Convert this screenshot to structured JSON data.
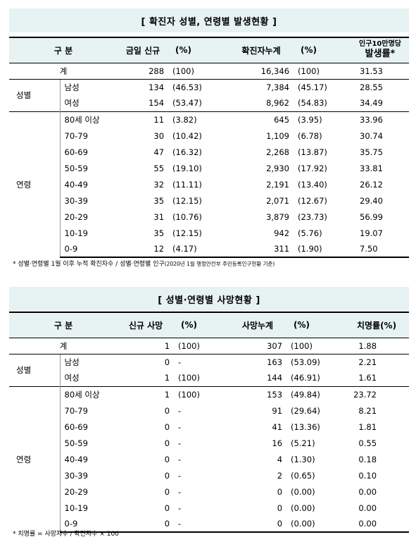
{
  "table1": {
    "title": "[ 확진자 성별, 연령별 발생현황 ]",
    "headers": {
      "category": "구 분",
      "new": "금일 신규",
      "new_pct": "(%)",
      "cum": "확진자누계",
      "cum_pct": "(%)",
      "rate_top": "인구10만명당",
      "rate_bottom": "발생률*"
    },
    "total": {
      "label": "계",
      "new": "288",
      "new_pct": "(100)",
      "cum": "16,346",
      "cum_pct": "(100)",
      "rate": "31.53"
    },
    "sex_group": "성별",
    "sex": [
      {
        "label": "남성",
        "new": "134",
        "new_pct": "(46.53)",
        "cum": "7,384",
        "cum_pct": "(45.17)",
        "rate": "28.55"
      },
      {
        "label": "여성",
        "new": "154",
        "new_pct": "(53.47)",
        "cum": "8,962",
        "cum_pct": "(54.83)",
        "rate": "34.49"
      }
    ],
    "age_group": "연령",
    "age": [
      {
        "label": "80세 이상",
        "new": "11",
        "new_pct": "(3.82)",
        "cum": "645",
        "cum_pct": "(3.95)",
        "rate": "33.96"
      },
      {
        "label": "70-79",
        "new": "30",
        "new_pct": "(10.42)",
        "cum": "1,109",
        "cum_pct": "(6.78)",
        "rate": "30.74"
      },
      {
        "label": "60-69",
        "new": "47",
        "new_pct": "(16.32)",
        "cum": "2,268",
        "cum_pct": "(13.87)",
        "rate": "35.75"
      },
      {
        "label": "50-59",
        "new": "55",
        "new_pct": "(19.10)",
        "cum": "2,930",
        "cum_pct": "(17.92)",
        "rate": "33.81"
      },
      {
        "label": "40-49",
        "new": "32",
        "new_pct": "(11.11)",
        "cum": "2,191",
        "cum_pct": "(13.40)",
        "rate": "26.12"
      },
      {
        "label": "30-39",
        "new": "35",
        "new_pct": "(12.15)",
        "cum": "2,071",
        "cum_pct": "(12.67)",
        "rate": "29.40"
      },
      {
        "label": "20-29",
        "new": "31",
        "new_pct": "(10.76)",
        "cum": "3,879",
        "cum_pct": "(23.73)",
        "rate": "56.99"
      },
      {
        "label": "10-19",
        "new": "35",
        "new_pct": "(12.15)",
        "cum": "942",
        "cum_pct": "(5.76)",
        "rate": "19.07"
      },
      {
        "label": "0-9",
        "new": "12",
        "new_pct": "(4.17)",
        "cum": "311",
        "cum_pct": "(1.90)",
        "rate": "7.50"
      }
    ],
    "note_main": "* 성별·연령별 1월 이후 누적 확진자수 / 성별·연령별 인구",
    "note_small": "(2020년 1월 행정안전부 주민등록인구현황 기준)"
  },
  "table2": {
    "title": "[ 성별·연령별 사망현황 ]",
    "headers": {
      "category": "구 분",
      "new": "신규 사망",
      "new_pct": "(%)",
      "cum": "사망누계",
      "cum_pct": "(%)",
      "rate": "치명률(%)"
    },
    "total": {
      "label": "계",
      "new": "1",
      "new_pct": "(100)",
      "cum": "307",
      "cum_pct": "(100)",
      "rate": "1.88"
    },
    "sex_group": "성별",
    "sex": [
      {
        "label": "남성",
        "new": "0",
        "new_pct": "-",
        "cum": "163",
        "cum_pct": "(53.09)",
        "rate": "2.21"
      },
      {
        "label": "여성",
        "new": "1",
        "new_pct": "(100)",
        "cum": "144",
        "cum_pct": "(46.91)",
        "rate": "1.61"
      }
    ],
    "age_group": "연령",
    "age": [
      {
        "label": "80세 이상",
        "new": "1",
        "new_pct": "(100)",
        "cum": "153",
        "cum_pct": "(49.84)",
        "rate": "23.72"
      },
      {
        "label": "70-79",
        "new": "0",
        "new_pct": "-",
        "cum": "91",
        "cum_pct": "(29.64)",
        "rate": "8.21"
      },
      {
        "label": "60-69",
        "new": "0",
        "new_pct": "-",
        "cum": "41",
        "cum_pct": "(13.36)",
        "rate": "1.81"
      },
      {
        "label": "50-59",
        "new": "0",
        "new_pct": "-",
        "cum": "16",
        "cum_pct": "(5.21)",
        "rate": "0.55"
      },
      {
        "label": "40-49",
        "new": "0",
        "new_pct": "-",
        "cum": "4",
        "cum_pct": "(1.30)",
        "rate": "0.18"
      },
      {
        "label": "30-39",
        "new": "0",
        "new_pct": "-",
        "cum": "2",
        "cum_pct": "(0.65)",
        "rate": "0.10"
      },
      {
        "label": "20-29",
        "new": "0",
        "new_pct": "-",
        "cum": "0",
        "cum_pct": "(0.00)",
        "rate": "0.00"
      },
      {
        "label": "10-19",
        "new": "0",
        "new_pct": "-",
        "cum": "0",
        "cum_pct": "(0.00)",
        "rate": "0.00"
      },
      {
        "label": "0-9",
        "new": "0",
        "new_pct": "-",
        "cum": "0",
        "cum_pct": "(0.00)",
        "rate": "0.00"
      }
    ],
    "note": "* 치명률 = 사망자수 / 확진자수 × 100"
  }
}
